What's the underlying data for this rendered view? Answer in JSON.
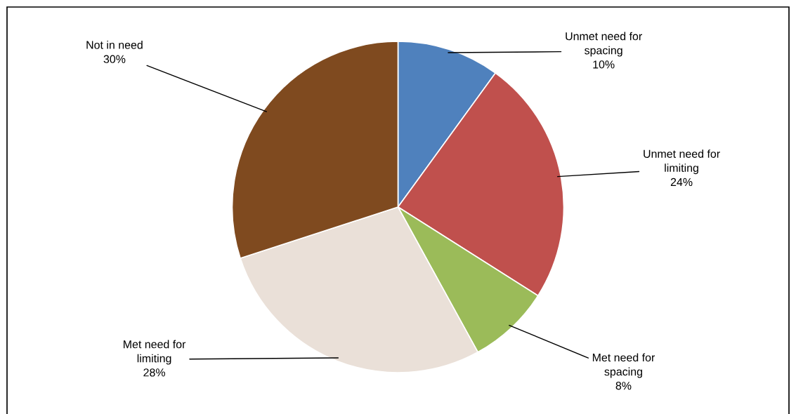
{
  "chart_data": {
    "type": "pie",
    "categories": [
      "Unmet need for\nspacing",
      "Unmet need for\nlimiting",
      "Met need for\nspacing",
      "Met need for\nlimiting",
      "Not in need"
    ],
    "values": [
      10,
      24,
      8,
      28,
      30
    ],
    "value_labels": [
      "10%",
      "24%",
      "8%",
      "28%",
      "30%"
    ],
    "colors": [
      "#4f81bd",
      "#c0504d",
      "#9bbb59",
      "#eae0d8",
      "#7f4a1f"
    ],
    "legend": false
  }
}
